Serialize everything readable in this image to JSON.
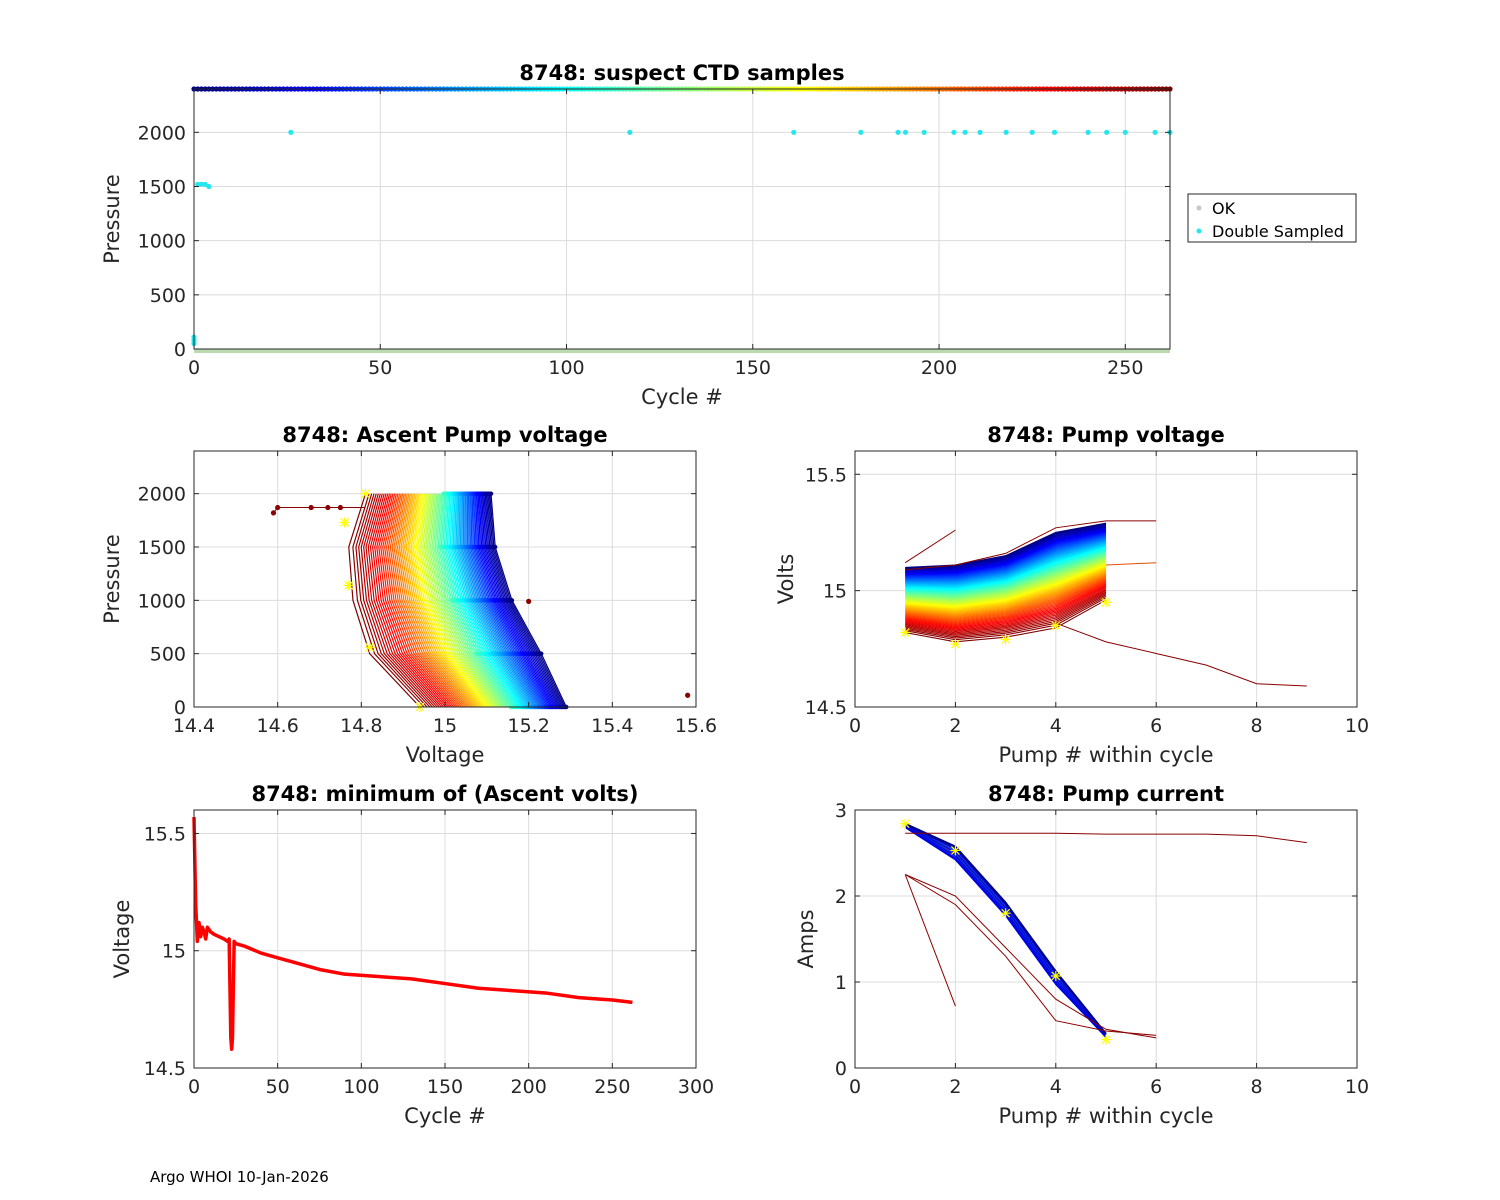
{
  "footer": "Argo WHOI 10-Jan-2026",
  "colors": {
    "ok_band": "#bcdab0",
    "double_sampled": "#22e8ee",
    "ok_marker": "#c8c8c8",
    "min_volts_line": "#ff0000",
    "star_marker": "#ffff00"
  },
  "chart_data": [
    {
      "id": "ctd",
      "type": "scatter",
      "title": "8748: suspect CTD samples",
      "xlabel": "Cycle #",
      "ylabel": "Pressure",
      "xlim": [
        0,
        262
      ],
      "ylim": [
        2400,
        0
      ],
      "xticks": [
        0,
        50,
        100,
        150,
        200,
        250
      ],
      "yticks": [
        0,
        500,
        1000,
        1500,
        2000
      ],
      "legend": {
        "position": "right",
        "entries": [
          "OK",
          "Double Sampled"
        ]
      },
      "ok_band": {
        "cycles": [
          4,
          262
        ],
        "pressure_range": [
          0,
          2020
        ]
      },
      "double_sampled_points": [
        [
          0,
          50
        ],
        [
          0,
          80
        ],
        [
          0,
          110
        ],
        [
          1,
          1520
        ],
        [
          2,
          1520
        ],
        [
          3,
          1520
        ],
        [
          4,
          1500
        ],
        [
          26,
          2000
        ],
        [
          117,
          2000
        ],
        [
          161,
          2000
        ],
        [
          179,
          2000
        ],
        [
          189,
          2000
        ],
        [
          191,
          2000
        ],
        [
          196,
          2000
        ],
        [
          204,
          2000
        ],
        [
          207,
          2000
        ],
        [
          211,
          2000
        ],
        [
          218,
          2000
        ],
        [
          225,
          2000
        ],
        [
          231,
          2000
        ],
        [
          240,
          2000
        ],
        [
          245,
          2000
        ],
        [
          250,
          2000
        ],
        [
          258,
          2000
        ],
        [
          262,
          2000
        ]
      ],
      "cycle_marker_pressure": 2400
    },
    {
      "id": "ascent",
      "type": "line",
      "title": "8748: Ascent Pump voltage",
      "xlabel": "Voltage",
      "ylabel": "Pressure",
      "xlim": [
        14.4,
        15.6
      ],
      "ylim": [
        2400,
        0
      ],
      "xticks": [
        14.4,
        14.6,
        14.8,
        15,
        15.2,
        15.4,
        15.6
      ],
      "yticks": [
        0,
        500,
        1000,
        1500,
        2000
      ],
      "pressure_levels": [
        0,
        500,
        1000,
        1500,
        2000
      ],
      "first_cycle_volts": [
        14.94,
        14.82,
        14.78,
        14.77,
        14.81
      ],
      "last_cycle_volts": [
        15.29,
        15.23,
        15.16,
        15.12,
        15.11
      ],
      "n_cycles": 262,
      "stars": [
        [
          14.94,
          0
        ],
        [
          14.82,
          560
        ],
        [
          14.77,
          1140
        ],
        [
          14.76,
          1730
        ],
        [
          14.81,
          2000
        ]
      ],
      "outliers": [
        [
          15.58,
          110
        ],
        [
          15.2,
          990
        ],
        [
          14.59,
          1820
        ],
        [
          14.6,
          1870
        ],
        [
          14.68,
          1870
        ],
        [
          14.72,
          1870
        ],
        [
          14.75,
          1870
        ]
      ]
    },
    {
      "id": "pumpv",
      "type": "line",
      "title": "8748: Pump voltage",
      "xlabel": "Pump # within cycle",
      "ylabel": "Volts",
      "xlim": [
        0,
        10
      ],
      "ylim": [
        14.5,
        15.6
      ],
      "xticks": [
        0,
        2,
        4,
        6,
        8,
        10
      ],
      "yticks": [
        14.5,
        15,
        15.5
      ],
      "ytick_labels": [
        "14.5",
        "15",
        "15.5"
      ],
      "n_cycles": 262,
      "first_cycle_volts": [
        14.82,
        14.78,
        14.8,
        14.84,
        14.96
      ],
      "last_cycle_volts": [
        15.1,
        15.11,
        15.15,
        15.25,
        15.29
      ],
      "stars": [
        [
          1,
          14.82
        ],
        [
          2,
          14.77
        ],
        [
          3,
          14.79
        ],
        [
          4,
          14.85
        ],
        [
          5,
          14.95
        ]
      ],
      "outliers": [
        {
          "x": [
            1,
            2
          ],
          "y": [
            15.12,
            15.26
          ]
        },
        {
          "x": [
            1,
            2,
            3,
            4,
            5,
            6
          ],
          "y": [
            15.09,
            15.11,
            15.16,
            15.27,
            15.3,
            15.3
          ]
        },
        {
          "x": [
            4,
            5,
            6,
            7,
            8,
            9
          ],
          "y": [
            14.86,
            14.78,
            14.73,
            14.68,
            14.6,
            14.59
          ]
        }
      ]
    },
    {
      "id": "minv",
      "type": "line",
      "title": "8748: minimum of (Ascent volts)",
      "xlabel": "Cycle #",
      "ylabel": "Voltage",
      "xlim": [
        0,
        300
      ],
      "ylim": [
        14.5,
        15.6
      ],
      "xticks": [
        0,
        50,
        100,
        150,
        200,
        250,
        300
      ],
      "yticks": [
        14.5,
        15,
        15.5
      ],
      "ytick_labels": [
        "14.5",
        "15",
        "15.5"
      ],
      "x": [
        0,
        1,
        2,
        3,
        4,
        5,
        6,
        7,
        8,
        9,
        10,
        12,
        15,
        18,
        20,
        21,
        22,
        22.5,
        23,
        24,
        25,
        30,
        40,
        50,
        60,
        75,
        90,
        110,
        130,
        150,
        170,
        190,
        210,
        230,
        250,
        262
      ],
      "y": [
        15.57,
        15.2,
        15.04,
        15.12,
        15.06,
        15.1,
        15.08,
        15.05,
        15.1,
        15.09,
        15.08,
        15.07,
        15.06,
        15.05,
        15.04,
        15.05,
        14.63,
        14.58,
        14.63,
        15.04,
        15.03,
        15.02,
        14.99,
        14.97,
        14.95,
        14.92,
        14.9,
        14.89,
        14.88,
        14.86,
        14.84,
        14.83,
        14.82,
        14.8,
        14.79,
        14.78
      ]
    },
    {
      "id": "pumpc",
      "type": "line",
      "title": "8748: Pump current",
      "xlabel": "Pump # within cycle",
      "ylabel": "Amps",
      "xlim": [
        0,
        10
      ],
      "ylim": [
        0,
        3
      ],
      "xticks": [
        0,
        2,
        4,
        6,
        8,
        10
      ],
      "yticks": [
        0,
        1,
        2,
        3
      ],
      "n_cycles": 262,
      "typical_amps": [
        2.82,
        2.5,
        1.85,
        1.05,
        0.38
      ],
      "stars": [
        [
          1,
          2.84
        ],
        [
          2,
          2.53
        ],
        [
          3,
          1.8
        ],
        [
          4,
          1.07
        ],
        [
          5,
          0.33
        ]
      ],
      "outliers": [
        {
          "x": [
            1,
            2,
            3,
            4,
            5,
            6,
            7,
            8,
            9
          ],
          "y": [
            2.73,
            2.73,
            2.73,
            2.73,
            2.72,
            2.72,
            2.72,
            2.7,
            2.62
          ]
        },
        {
          "x": [
            1,
            2
          ],
          "y": [
            2.25,
            0.72
          ]
        },
        {
          "x": [
            1,
            2,
            3,
            4,
            5,
            6
          ],
          "y": [
            2.25,
            1.9,
            1.3,
            0.55,
            0.43,
            0.38
          ]
        },
        {
          "x": [
            1,
            2,
            3,
            4,
            5,
            6
          ],
          "y": [
            2.25,
            2.0,
            1.4,
            0.8,
            0.45,
            0.35
          ]
        }
      ]
    }
  ]
}
